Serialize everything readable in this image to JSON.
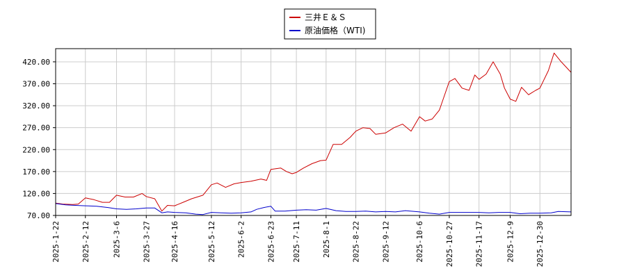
{
  "chart_data": {
    "type": "line",
    "title": "",
    "xlabel": "",
    "ylabel": "",
    "ylim": [
      70,
      450
    ],
    "x_range": [
      "2025-01-22",
      "2026-01-21"
    ],
    "y_ticks": [
      "70.00",
      "120.00",
      "170.00",
      "220.00",
      "270.00",
      "320.00",
      "370.00",
      "420.00"
    ],
    "y_tick_values": [
      70,
      120,
      170,
      220,
      270,
      320,
      370,
      420
    ],
    "x_ticks": [
      "2025-1-22",
      "2025-2-12",
      "2025-3-6",
      "2025-3-27",
      "2025-4-16",
      "2025-5-12",
      "2025-6-2",
      "2025-6-23",
      "2025-7-11",
      "2025-8-1",
      "2025-8-22",
      "2025-9-12",
      "2025-10-6",
      "2025-10-27",
      "2025-11-17",
      "2025-12-9",
      "2025-12-30"
    ],
    "x_tick_dates": [
      "2025-01-22",
      "2025-02-12",
      "2025-03-06",
      "2025-03-27",
      "2025-04-16",
      "2025-05-12",
      "2025-06-02",
      "2025-06-23",
      "2025-07-11",
      "2025-08-01",
      "2025-08-22",
      "2025-09-12",
      "2025-10-06",
      "2025-10-27",
      "2025-11-17",
      "2025-12-09",
      "2025-12-30"
    ],
    "grid": true,
    "legend_position": "top-center",
    "series": [
      {
        "name": "三井Ｅ＆Ｓ",
        "color": "#cc0000",
        "points": [
          [
            "2025-01-22",
            98
          ],
          [
            "2025-01-27",
            96
          ],
          [
            "2025-02-03",
            95
          ],
          [
            "2025-02-07",
            96
          ],
          [
            "2025-02-12",
            110
          ],
          [
            "2025-02-18",
            106
          ],
          [
            "2025-02-24",
            100
          ],
          [
            "2025-03-01",
            100
          ],
          [
            "2025-03-06",
            116
          ],
          [
            "2025-03-12",
            112
          ],
          [
            "2025-03-18",
            112
          ],
          [
            "2025-03-24",
            120
          ],
          [
            "2025-03-27",
            113
          ],
          [
            "2025-04-02",
            108
          ],
          [
            "2025-04-07",
            80
          ],
          [
            "2025-04-11",
            93
          ],
          [
            "2025-04-16",
            92
          ],
          [
            "2025-04-22",
            100
          ],
          [
            "2025-04-28",
            108
          ],
          [
            "2025-05-06",
            116
          ],
          [
            "2025-05-12",
            140
          ],
          [
            "2025-05-16",
            144
          ],
          [
            "2025-05-22",
            134
          ],
          [
            "2025-05-28",
            142
          ],
          [
            "2025-06-02",
            145
          ],
          [
            "2025-06-09",
            148
          ],
          [
            "2025-06-16",
            153
          ],
          [
            "2025-06-20",
            150
          ],
          [
            "2025-06-23",
            175
          ],
          [
            "2025-06-30",
            178
          ],
          [
            "2025-07-04",
            170
          ],
          [
            "2025-07-08",
            165
          ],
          [
            "2025-07-11",
            168
          ],
          [
            "2025-07-16",
            178
          ],
          [
            "2025-07-22",
            188
          ],
          [
            "2025-07-28",
            195
          ],
          [
            "2025-08-01",
            196
          ],
          [
            "2025-08-06",
            232
          ],
          [
            "2025-08-12",
            232
          ],
          [
            "2025-08-18",
            248
          ],
          [
            "2025-08-22",
            262
          ],
          [
            "2025-08-27",
            270
          ],
          [
            "2025-09-01",
            268
          ],
          [
            "2025-09-05",
            255
          ],
          [
            "2025-09-12",
            258
          ],
          [
            "2025-09-18",
            270
          ],
          [
            "2025-09-24",
            278
          ],
          [
            "2025-09-30",
            262
          ],
          [
            "2025-10-06",
            295
          ],
          [
            "2025-10-10",
            285
          ],
          [
            "2025-10-15",
            290
          ],
          [
            "2025-10-20",
            310
          ],
          [
            "2025-10-27",
            375
          ],
          [
            "2025-10-31",
            382
          ],
          [
            "2025-11-05",
            360
          ],
          [
            "2025-11-10",
            355
          ],
          [
            "2025-11-14",
            390
          ],
          [
            "2025-11-17",
            380
          ],
          [
            "2025-11-22",
            392
          ],
          [
            "2025-11-27",
            420
          ],
          [
            "2025-12-02",
            392
          ],
          [
            "2025-12-05",
            360
          ],
          [
            "2025-12-09",
            335
          ],
          [
            "2025-12-13",
            330
          ],
          [
            "2025-12-17",
            362
          ],
          [
            "2025-12-22",
            345
          ],
          [
            "2025-12-27",
            355
          ],
          [
            "2025-12-30",
            360
          ],
          [
            "2026-01-05",
            400
          ],
          [
            "2026-01-09",
            440
          ],
          [
            "2026-01-14",
            420
          ],
          [
            "2026-01-21",
            396
          ]
        ]
      },
      {
        "name": "原油価格（WTI)",
        "color": "#0000cc",
        "points": [
          [
            "2025-01-22",
            97
          ],
          [
            "2025-01-29",
            94
          ],
          [
            "2025-02-05",
            93
          ],
          [
            "2025-02-12",
            92
          ],
          [
            "2025-02-20",
            91
          ],
          [
            "2025-02-28",
            88
          ],
          [
            "2025-03-06",
            85
          ],
          [
            "2025-03-13",
            84
          ],
          [
            "2025-03-20",
            85
          ],
          [
            "2025-03-27",
            87
          ],
          [
            "2025-04-02",
            87
          ],
          [
            "2025-04-07",
            76
          ],
          [
            "2025-04-11",
            78
          ],
          [
            "2025-04-16",
            77
          ],
          [
            "2025-04-24",
            76
          ],
          [
            "2025-05-01",
            73
          ],
          [
            "2025-05-06",
            72
          ],
          [
            "2025-05-12",
            77
          ],
          [
            "2025-05-19",
            76
          ],
          [
            "2025-05-26",
            75
          ],
          [
            "2025-06-02",
            76
          ],
          [
            "2025-06-09",
            78
          ],
          [
            "2025-06-13",
            84
          ],
          [
            "2025-06-18",
            88
          ],
          [
            "2025-06-23",
            91
          ],
          [
            "2025-06-26",
            80
          ],
          [
            "2025-07-03",
            80
          ],
          [
            "2025-07-11",
            82
          ],
          [
            "2025-07-18",
            83
          ],
          [
            "2025-07-25",
            82
          ],
          [
            "2025-08-01",
            86
          ],
          [
            "2025-08-08",
            81
          ],
          [
            "2025-08-15",
            79
          ],
          [
            "2025-08-22",
            79
          ],
          [
            "2025-08-29",
            80
          ],
          [
            "2025-09-05",
            78
          ],
          [
            "2025-09-12",
            79
          ],
          [
            "2025-09-19",
            78
          ],
          [
            "2025-09-26",
            81
          ],
          [
            "2025-10-06",
            78
          ],
          [
            "2025-10-13",
            75
          ],
          [
            "2025-10-20",
            73
          ],
          [
            "2025-10-27",
            77
          ],
          [
            "2025-11-03",
            77
          ],
          [
            "2025-11-10",
            77
          ],
          [
            "2025-11-17",
            77
          ],
          [
            "2025-11-24",
            76
          ],
          [
            "2025-12-01",
            77
          ],
          [
            "2025-12-09",
            77
          ],
          [
            "2025-12-16",
            74
          ],
          [
            "2025-12-23",
            75
          ],
          [
            "2025-12-30",
            75
          ],
          [
            "2026-01-07",
            76
          ],
          [
            "2026-01-12",
            79
          ],
          [
            "2026-01-21",
            78
          ]
        ]
      }
    ]
  }
}
